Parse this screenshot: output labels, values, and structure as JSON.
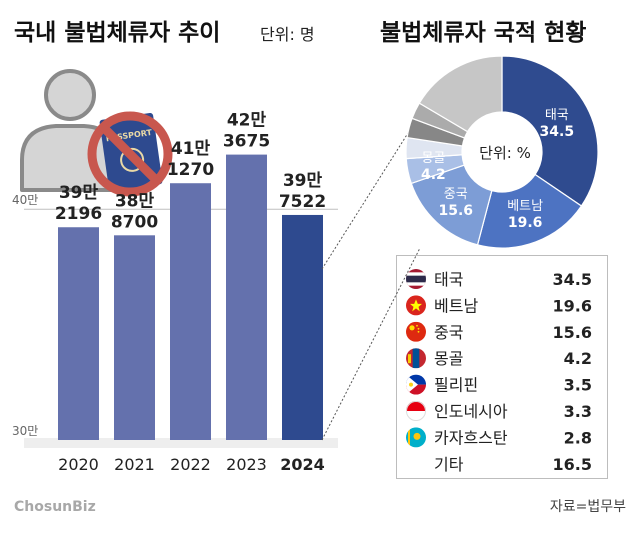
{
  "left_title": "국내 불법체류자 추이",
  "left_unit": "단위: 명",
  "right_title": "불법체류자 국적 현황",
  "source": "자료=법무부",
  "logo_text": "ChosunBiz",
  "passport_text": "PASSPORT",
  "chart_data": [
    {
      "type": "bar",
      "categories": [
        "2020",
        "2021",
        "2022",
        "2023",
        "2024"
      ],
      "values": [
        392196,
        388700,
        411270,
        423675,
        397522
      ],
      "value_labels": [
        [
          "39만",
          "2196"
        ],
        [
          "38만",
          "8700"
        ],
        [
          "41만",
          "1270"
        ],
        [
          "42만",
          "3675"
        ],
        [
          "39만",
          "7522"
        ]
      ],
      "y_tick_labels": [
        "30만",
        "40만"
      ],
      "y_ticks": [
        300000,
        400000
      ],
      "ylim": [
        300000,
        430000
      ],
      "colors": [
        "#6471ad",
        "#6471ad",
        "#6471ad",
        "#6471ad",
        "#2e4a8f"
      ]
    },
    {
      "type": "pie",
      "unit_label": "단위: %",
      "slices": [
        {
          "label": "태국",
          "value": 34.5,
          "color": "#2f4b8f"
        },
        {
          "label": "베트남",
          "value": 19.6,
          "color": "#4d73c2"
        },
        {
          "label": "중국",
          "value": 15.6,
          "color": "#7d9dd6"
        },
        {
          "label": "몽골",
          "value": 4.2,
          "color": "#a9bfe6"
        },
        {
          "label": "필리핀",
          "value": 3.5,
          "color": "#dfe5f1"
        },
        {
          "label": "인도네시아",
          "value": 3.3,
          "color": "#878787"
        },
        {
          "label": "카자흐스탄",
          "value": 2.8,
          "color": "#ababab"
        },
        {
          "label": "기타",
          "value": 16.5,
          "color": "#c6c6c6"
        }
      ],
      "slice_value_labels": [
        "34.5",
        "19.6",
        "15.6",
        "4.2"
      ],
      "legend": {
        "rows": [
          {
            "name": "태국",
            "value": "34.5",
            "flag": "thailand-flag-icon"
          },
          {
            "name": "베트남",
            "value": "19.6",
            "flag": "vietnam-flag-icon"
          },
          {
            "name": "중국",
            "value": "15.6",
            "flag": "china-flag-icon"
          },
          {
            "name": "몽골",
            "value": "4.2",
            "flag": "mongolia-flag-icon"
          },
          {
            "name": "필리핀",
            "value": "3.5",
            "flag": "philippines-flag-icon"
          },
          {
            "name": "인도네시아",
            "value": "3.3",
            "flag": "indonesia-flag-icon"
          },
          {
            "name": "카자흐스탄",
            "value": "2.8",
            "flag": "kazakhstan-flag-icon"
          },
          {
            "name": "기타",
            "value": "16.5",
            "flag": ""
          }
        ]
      }
    }
  ]
}
